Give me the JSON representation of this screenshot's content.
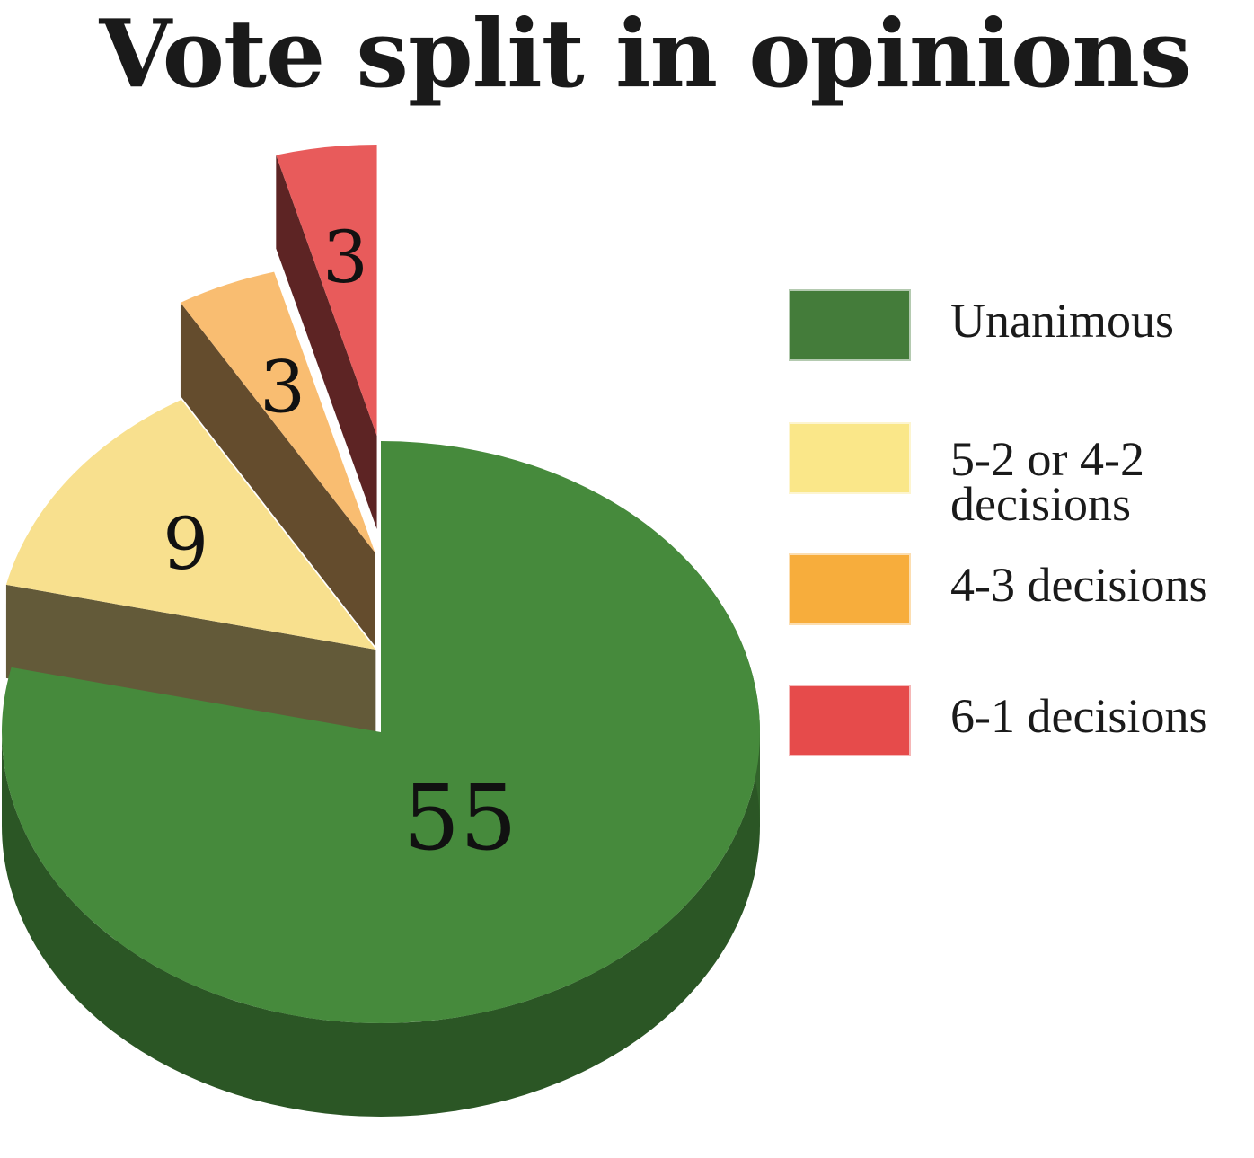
{
  "chart_data": {
    "type": "pie",
    "title": "Vote split in opinions",
    "categories": [
      "Unanimous",
      "5-2 or 4-2 decisions",
      "4-3 decisions",
      "6-1 decisions"
    ],
    "values": [
      55,
      9,
      3,
      3
    ],
    "value_labels": [
      "55",
      "9",
      "3",
      "3"
    ],
    "colors": [
      "#468a3c",
      "#f8e08e",
      "#f9bd71",
      "#e85b5b"
    ],
    "legend_colors": [
      "#447c3a",
      "#fae789",
      "#f7ad3c",
      "#e64b4b"
    ],
    "legend_lines": [
      [
        "Unanimous"
      ],
      [
        "5-2 or 4-2",
        "decisions"
      ],
      [
        "4-3 decisions"
      ],
      [
        "6-1 decisions"
      ]
    ],
    "legend_position": "right",
    "exploded": [
      false,
      true,
      true,
      true
    ],
    "three_d": true
  }
}
